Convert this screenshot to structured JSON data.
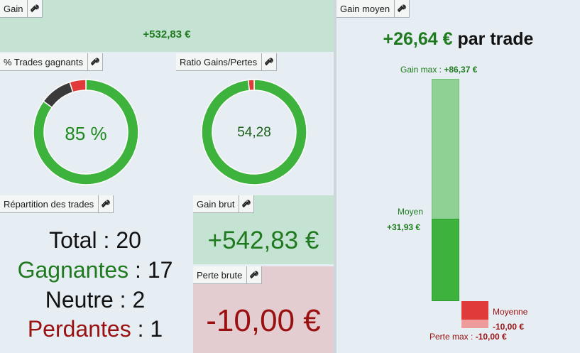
{
  "gain": {
    "title": "Gain",
    "value": "+532,83 €"
  },
  "trades_gagnants": {
    "title": "% Trades gagnants",
    "center": "85 %",
    "segments": [
      {
        "name": "win",
        "fraction": 0.85,
        "color": "#3db23d"
      },
      {
        "name": "neutral",
        "fraction": 0.1,
        "color": "#3a3a3a"
      },
      {
        "name": "loss",
        "fraction": 0.05,
        "color": "#e03a3a"
      }
    ]
  },
  "ratio": {
    "title": "Ratio Gains/Pertes",
    "center": "54,28",
    "segments": [
      {
        "name": "gain",
        "fraction": 0.982,
        "color": "#3db23d"
      },
      {
        "name": "loss",
        "fraction": 0.018,
        "color": "#e03a3a"
      }
    ]
  },
  "repartition": {
    "title": "Répartition des trades",
    "rows": [
      {
        "label": "Total",
        "sep": " : ",
        "value": "20",
        "color": "#111111"
      },
      {
        "label": "Gagnantes",
        "sep": " : ",
        "value": "17",
        "color": "#1f7a1f"
      },
      {
        "label": "Neutre",
        "sep": " : ",
        "value": "2",
        "color": "#111111"
      },
      {
        "label": "Perdantes",
        "sep": " : ",
        "value": "1",
        "color": "#9a1010"
      }
    ]
  },
  "gain_brut": {
    "title": "Gain brut",
    "value": "+542,83 €"
  },
  "perte_brute": {
    "title": "Perte brute",
    "value": "-10,00 €"
  },
  "gain_moyen": {
    "title": "Gain moyen",
    "value": "+26,64 €",
    "suffix": " par trade",
    "gain_max_label": "Gain max : ",
    "gain_max_value": "+86,37 €",
    "moyen_label": "Moyen",
    "moyen_value": "+31,93 €",
    "moyenne_label": "Moyenne",
    "moyenne_value": "-10,00 €",
    "perte_max_label": "Perte max : ",
    "perte_max_value": "-10,00 €",
    "gain_max": 86.37,
    "gain_avg": 31.93,
    "loss_avg": 10.0,
    "loss_max": 10.0
  },
  "colors": {
    "green": "#1f7a1f",
    "red": "#9a1010",
    "bar_light": "#8fd194",
    "bar_dark": "#3db23d"
  }
}
